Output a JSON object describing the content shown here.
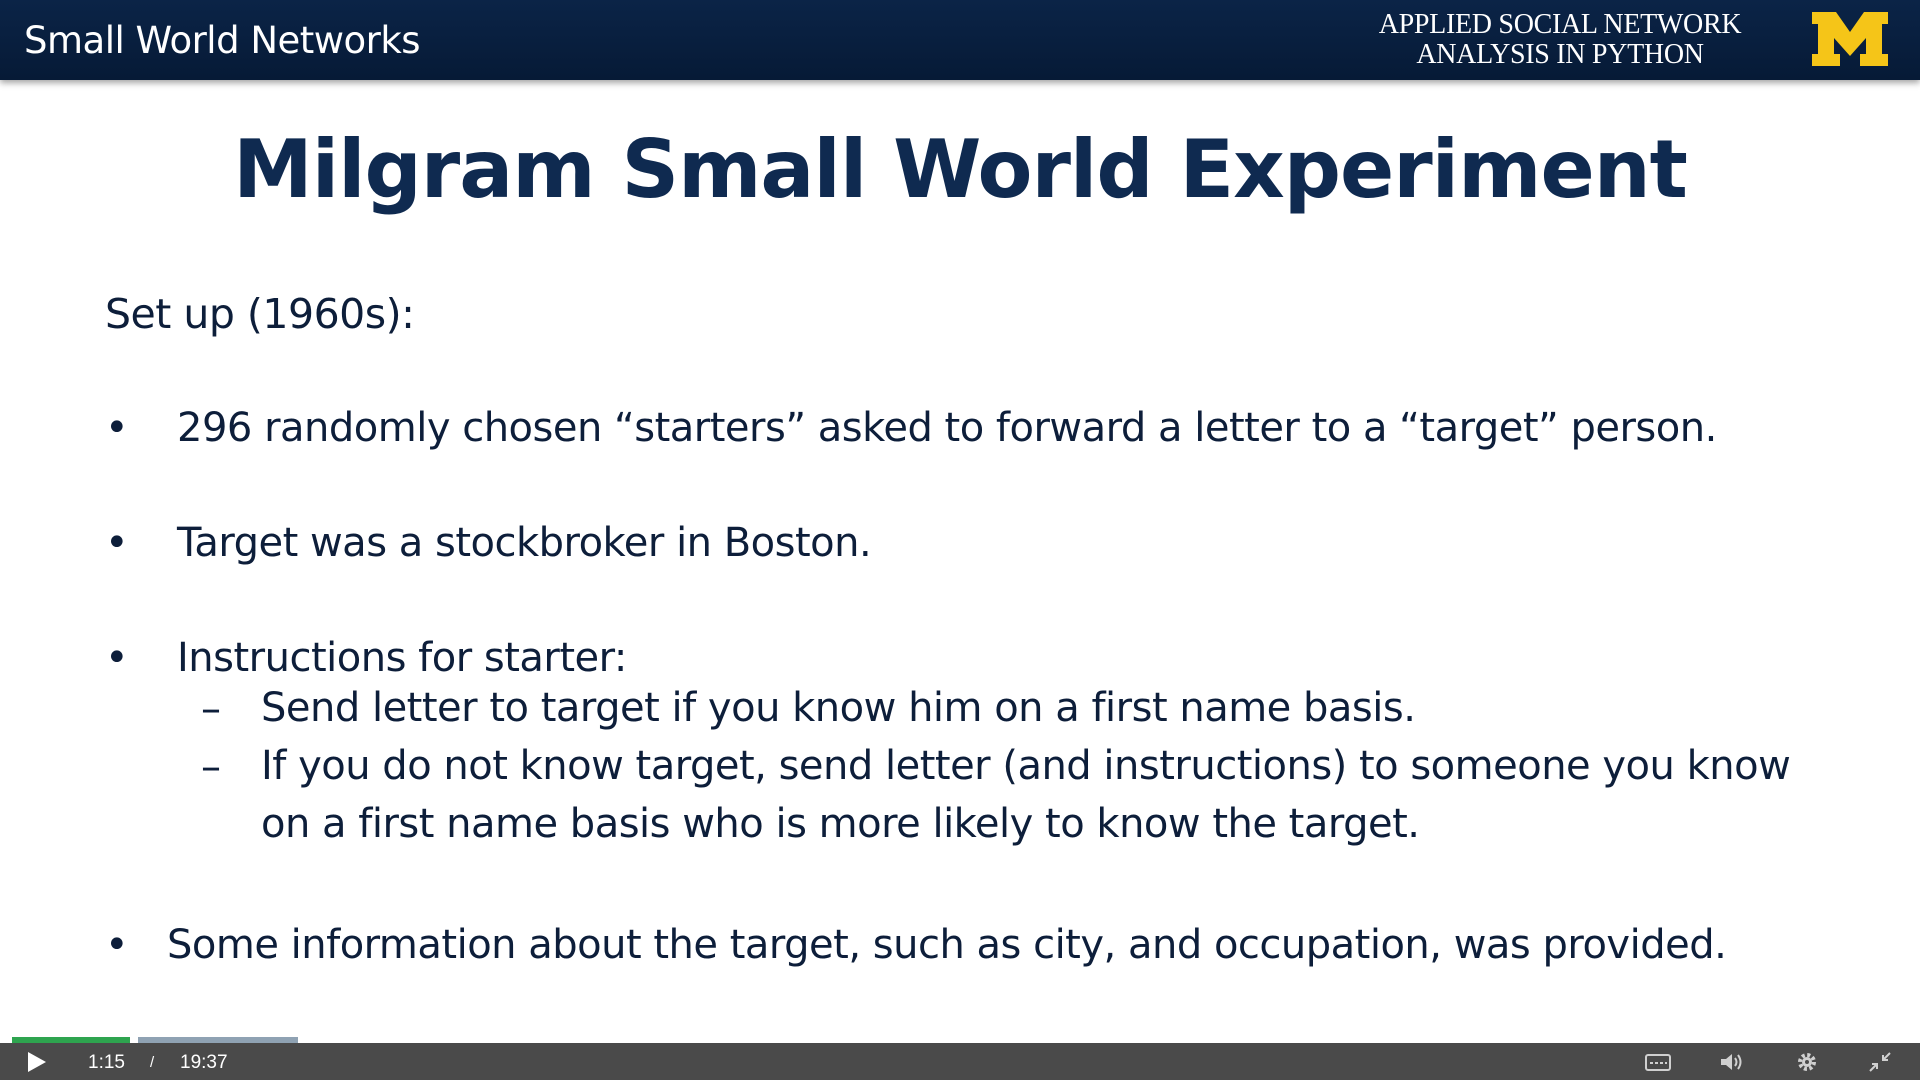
{
  "header": {
    "title": "Small World Networks",
    "course_line1": "APPLIED SOCIAL NETWORK",
    "course_line2": "ANALYSIS IN PYTHON",
    "logo_text": "M",
    "logo_color": "#f5c518",
    "background": "#0b2447"
  },
  "slide": {
    "title": "Milgram Small World Experiment",
    "setup_heading": "Set up (1960s):",
    "bullet_symbol": "•",
    "dash_symbol": "–",
    "bullets": [
      "296 randomly chosen “starters” asked to forward a letter to a “target” person.",
      "Target was a stockbroker in Boston.",
      "Instructions for starter:",
      "Some information about the target, such as city, and occupation, was provided."
    ],
    "sub_bullets": [
      "Send letter to target if you know him on a first name basis.",
      "If you do not know target, send letter (and instructions) to someone you know",
      "on a first name basis who is more likely to know the target."
    ]
  },
  "player": {
    "current_time": "1:15",
    "separator": "/",
    "duration": "19:37",
    "progress_fraction": 0.064,
    "icons": [
      "play-icon",
      "captions-icon",
      "volume-icon",
      "settings-icon",
      "exit-fullscreen-icon"
    ]
  }
}
